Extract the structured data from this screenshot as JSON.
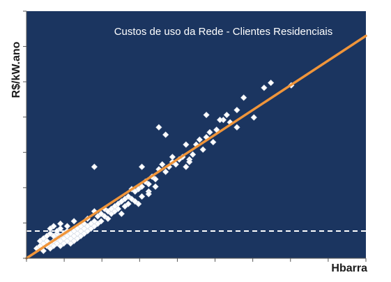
{
  "chart_data": {
    "type": "scatter",
    "title": "Custos de uso da Rede - Clientes Residenciais",
    "xlabel": "Hbarra",
    "ylabel": "R$/kW.ano",
    "xlim": [
      0,
      100
    ],
    "ylim": [
      0,
      100
    ],
    "x_tick_count": 9,
    "y_tick_count": 7,
    "grid": false,
    "background_color": "#1b3560",
    "marker_color": "#ffffff",
    "fit_line": {
      "color": "#f0953a",
      "points": [
        [
          0,
          0
        ],
        [
          100,
          90
        ]
      ]
    },
    "threshold_line": {
      "y": 11,
      "color": "#ffffff",
      "style": "dashed"
    },
    "series": [
      {
        "marker": "diamond",
        "points": [
          [
            3,
            4
          ],
          [
            4,
            5
          ],
          [
            4,
            7
          ],
          [
            5,
            3
          ],
          [
            5,
            6
          ],
          [
            5,
            8
          ],
          [
            6,
            5
          ],
          [
            6,
            7
          ],
          [
            6,
            9
          ],
          [
            7,
            4
          ],
          [
            7,
            6
          ],
          [
            7,
            10
          ],
          [
            7,
            12
          ],
          [
            8,
            5
          ],
          [
            8,
            7
          ],
          [
            8,
            9
          ],
          [
            8,
            13
          ],
          [
            9,
            6
          ],
          [
            9,
            8
          ],
          [
            9,
            10
          ],
          [
            9,
            11
          ],
          [
            10,
            5
          ],
          [
            10,
            7
          ],
          [
            10,
            9
          ],
          [
            10,
            12
          ],
          [
            10,
            14
          ],
          [
            11,
            6
          ],
          [
            11,
            8
          ],
          [
            11,
            10
          ],
          [
            12,
            7
          ],
          [
            12,
            9
          ],
          [
            12,
            11
          ],
          [
            12,
            13
          ],
          [
            13,
            6
          ],
          [
            13,
            8
          ],
          [
            13,
            10
          ],
          [
            14,
            7
          ],
          [
            14,
            9
          ],
          [
            14,
            11
          ],
          [
            14,
            15
          ],
          [
            15,
            8
          ],
          [
            15,
            10
          ],
          [
            15,
            12
          ],
          [
            16,
            9
          ],
          [
            16,
            11
          ],
          [
            16,
            13
          ],
          [
            17,
            10
          ],
          [
            17,
            12
          ],
          [
            17,
            14
          ],
          [
            18,
            11
          ],
          [
            18,
            13
          ],
          [
            18,
            16
          ],
          [
            19,
            12
          ],
          [
            19,
            14
          ],
          [
            20,
            13
          ],
          [
            20,
            15
          ],
          [
            20,
            19
          ],
          [
            21,
            14
          ],
          [
            21,
            17
          ],
          [
            22,
            15
          ],
          [
            22,
            18
          ],
          [
            23,
            17
          ],
          [
            23,
            20
          ],
          [
            24,
            16
          ],
          [
            24,
            19
          ],
          [
            25,
            18
          ],
          [
            25,
            20
          ],
          [
            26,
            19
          ],
          [
            26,
            21
          ],
          [
            27,
            20
          ],
          [
            27,
            22
          ],
          [
            28,
            18
          ],
          [
            28,
            23
          ],
          [
            29,
            21
          ],
          [
            29,
            24
          ],
          [
            30,
            22
          ],
          [
            30,
            25
          ],
          [
            31,
            24
          ],
          [
            31,
            28
          ],
          [
            32,
            23
          ],
          [
            32,
            27
          ],
          [
            33,
            22
          ],
          [
            33,
            28
          ],
          [
            34,
            25
          ],
          [
            34,
            29
          ],
          [
            35,
            31
          ],
          [
            36,
            27
          ],
          [
            36,
            30
          ],
          [
            37,
            33
          ],
          [
            38,
            29
          ],
          [
            38,
            32
          ],
          [
            39,
            36
          ],
          [
            40,
            38
          ],
          [
            41,
            35
          ],
          [
            42,
            37
          ],
          [
            43,
            39
          ],
          [
            44,
            38
          ],
          [
            45,
            40
          ],
          [
            46,
            41
          ],
          [
            47,
            37
          ],
          [
            48,
            40
          ],
          [
            49,
            42
          ],
          [
            50,
            46
          ],
          [
            51,
            48
          ],
          [
            52,
            44
          ],
          [
            53,
            49
          ],
          [
            54,
            51
          ],
          [
            55,
            47
          ],
          [
            56,
            52
          ],
          [
            58,
            56
          ],
          [
            60,
            55
          ],
          [
            62,
            60
          ],
          [
            64,
            65
          ],
          [
            67,
            57
          ],
          [
            70,
            69
          ],
          [
            72,
            71
          ],
          [
            78,
            70
          ],
          [
            20,
            37
          ],
          [
            34,
            37
          ],
          [
            36,
            26
          ],
          [
            39,
            53
          ],
          [
            41,
            50
          ],
          [
            43,
            41
          ],
          [
            47,
            46
          ],
          [
            48,
            39
          ],
          [
            53,
            58
          ],
          [
            57,
            56
          ],
          [
            59,
            58
          ],
          [
            62,
            53
          ],
          [
            45,
            40
          ]
        ]
      }
    ]
  }
}
